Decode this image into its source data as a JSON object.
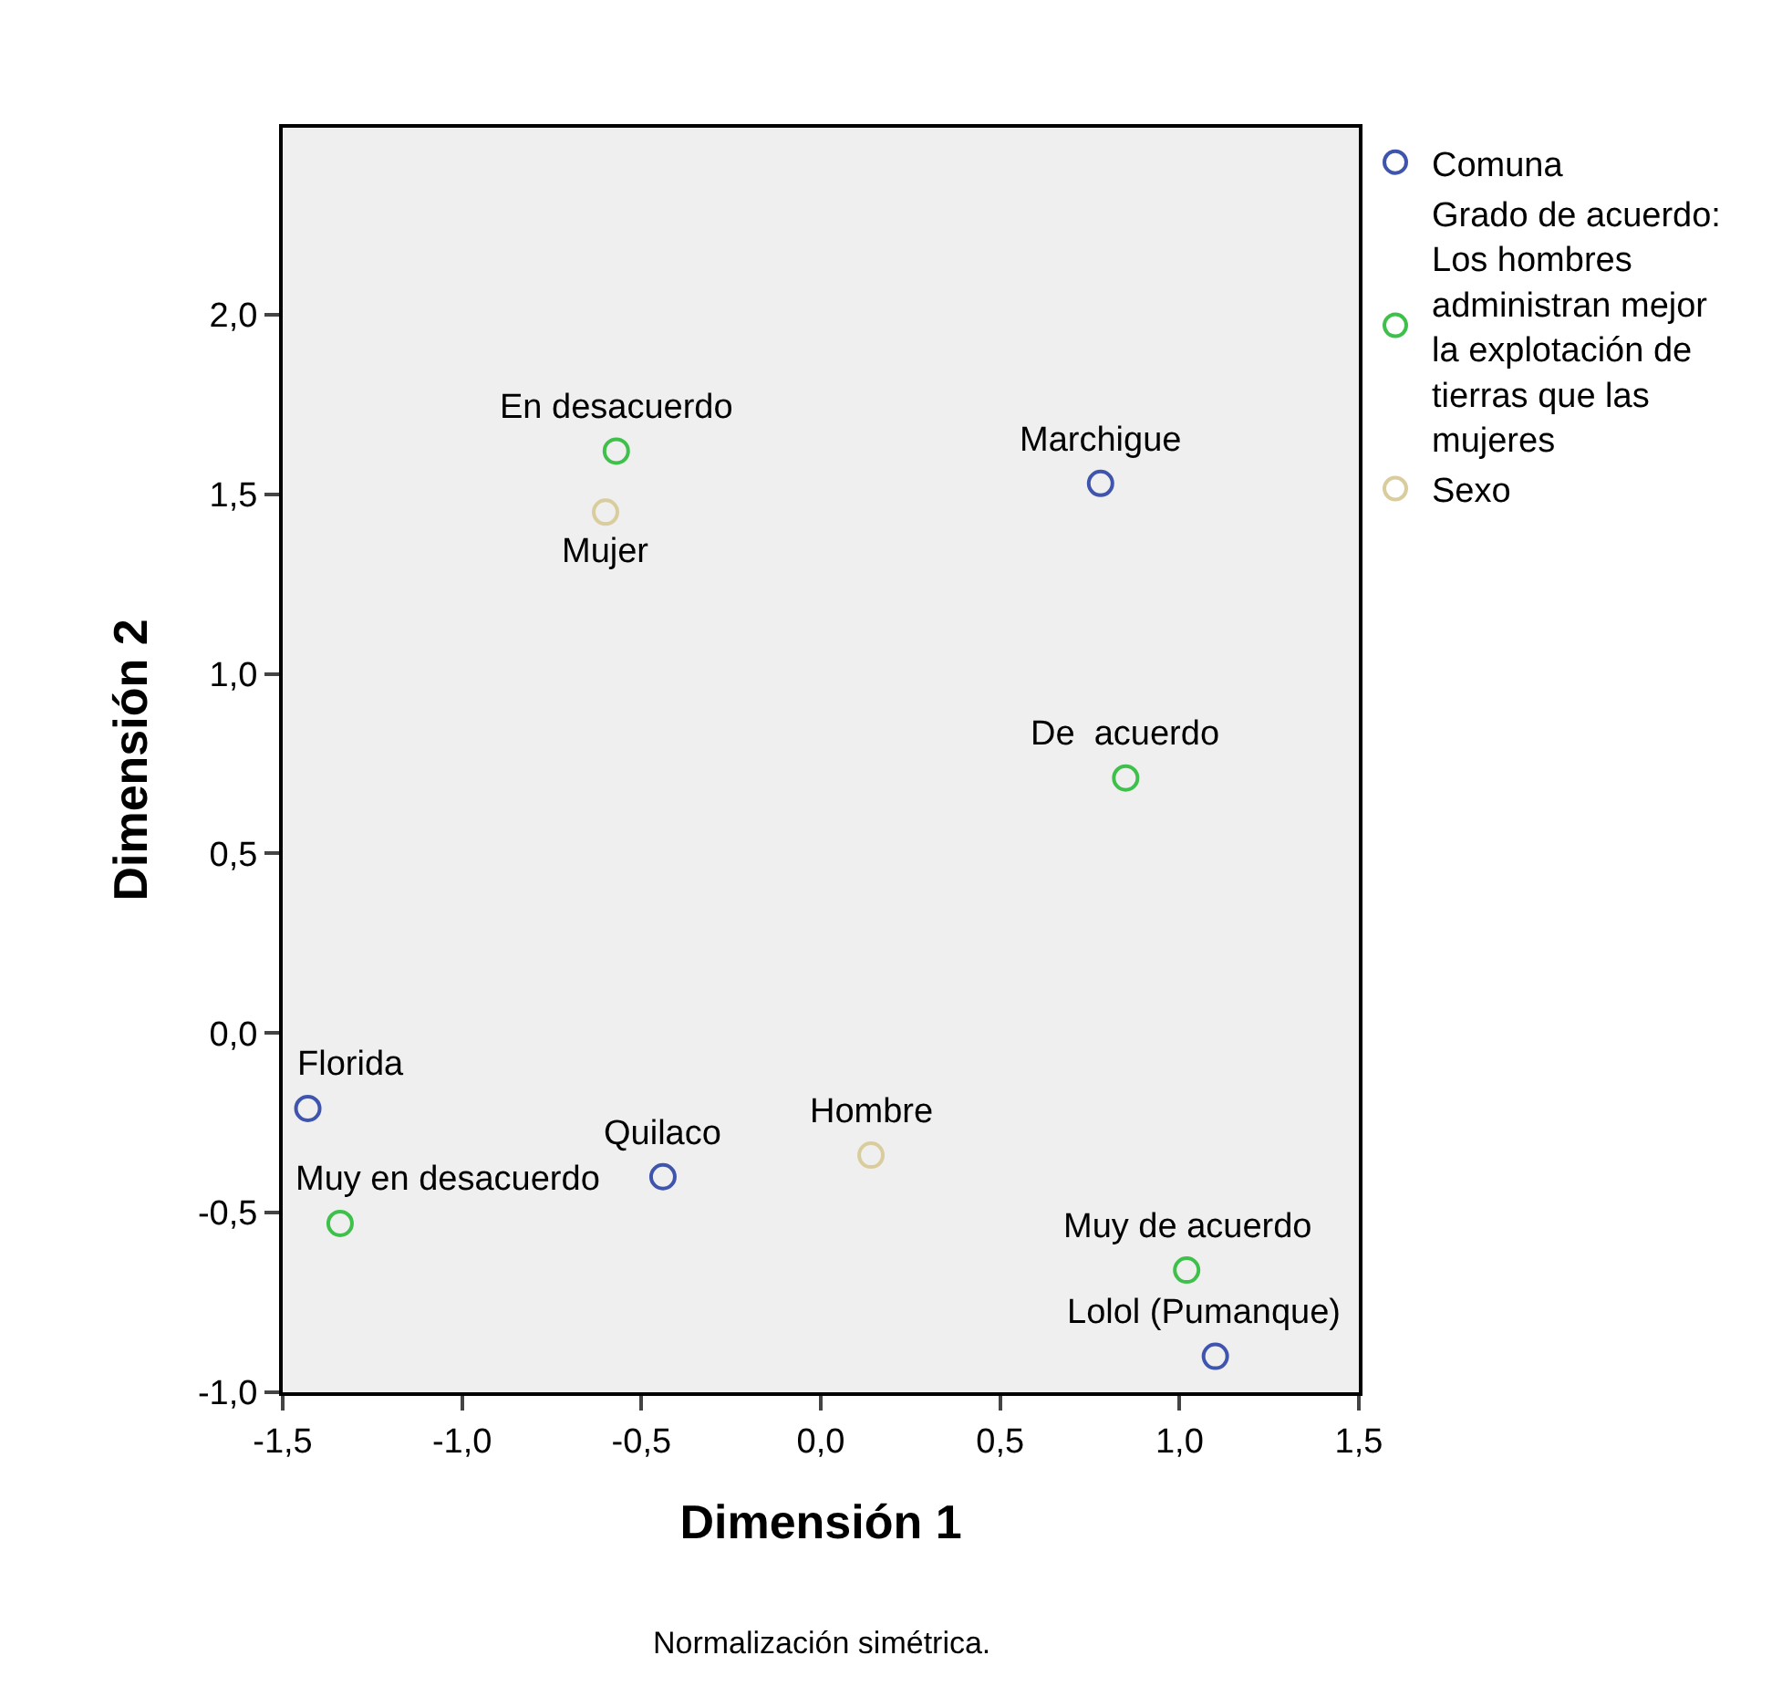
{
  "chart_data": {
    "type": "scatter",
    "xlabel": "Dimensión 1",
    "ylabel": "Dimensión 2",
    "series": [
      {
        "name": "Comuna",
        "color": "#3f55ad",
        "x": [
          0.78,
          -1.43,
          -0.44,
          1.1
        ],
        "values": [
          1.53,
          -0.21,
          -0.4,
          -0.9
        ]
      },
      {
        "name": "Grado de acuerdo: Los hombres administran mejor la explotación de tierras que las mujeres",
        "color": "#3ec04b",
        "x": [
          -0.57,
          0.85,
          -1.34,
          1.02
        ],
        "values": [
          1.62,
          0.71,
          -0.53,
          -0.66
        ]
      },
      {
        "name": "Sexo",
        "color": "#d9cd9e",
        "x": [
          -0.6,
          0.14
        ],
        "values": [
          1.45,
          -0.34
        ]
      }
    ],
    "annotations": [
      {
        "text": "Marchigue",
        "x": 0.78,
        "y": 1.53
      },
      {
        "text": "Florida",
        "x": -1.43,
        "y": -0.21
      },
      {
        "text": "Quilaco",
        "x": -0.44,
        "y": -0.4
      },
      {
        "text": "Lolol (Pumanque)",
        "x": 1.1,
        "y": -0.9
      },
      {
        "text": "En desacuerdo",
        "x": -0.57,
        "y": 1.62
      },
      {
        "text": "De  acuerdo",
        "x": 0.85,
        "y": 0.71
      },
      {
        "text": "Muy en desacuerdo",
        "x": -1.34,
        "y": -0.53
      },
      {
        "text": "Muy de acuerdo",
        "x": 1.02,
        "y": -0.66
      },
      {
        "text": "Mujer",
        "x": -0.6,
        "y": 1.45
      },
      {
        "text": "Hombre",
        "x": 0.14,
        "y": -0.34
      },
      "Normalización simétrica."
    ],
    "xlim": [
      -1.5,
      1.5
    ],
    "xticks": [
      {
        "value": -1.5,
        "label": "-1,5"
      },
      {
        "value": -1.0,
        "label": "-1,0"
      },
      {
        "value": -0.5,
        "label": "-0,5"
      },
      {
        "value": 0,
        "label": "0,0"
      },
      {
        "value": 0.5,
        "label": "0,5"
      },
      {
        "value": 1.0,
        "label": "1,0"
      },
      {
        "value": 1.5,
        "label": "1,5"
      }
    ],
    "ylim": [
      -1.0,
      2.52
    ],
    "yticks": [
      {
        "value": -1.0,
        "label": "-1,0"
      },
      {
        "value": -0.5,
        "label": "-0,5"
      },
      {
        "value": 0,
        "label": "0,0"
      },
      {
        "value": 0.5,
        "label": "0,5"
      },
      {
        "value": 1.0,
        "label": "1,0"
      },
      {
        "value": 1.5,
        "label": "1,5"
      },
      {
        "value": 2.0,
        "label": "2,0"
      }
    ],
    "grid": false,
    "legend": "top right",
    "marker": "circle"
  }
}
